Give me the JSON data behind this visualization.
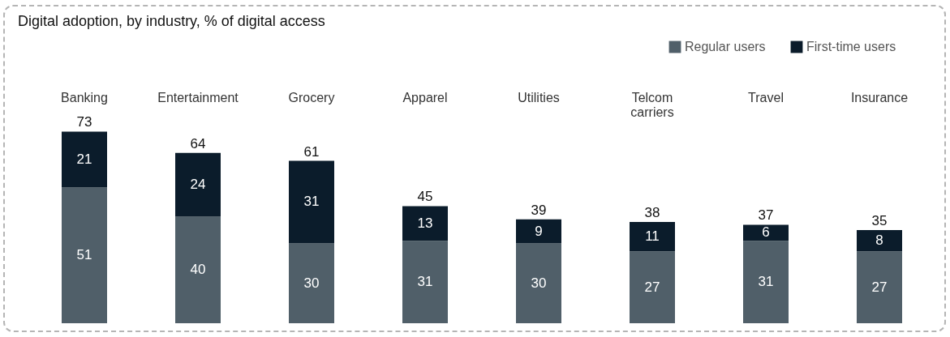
{
  "chart_data": {
    "type": "bar",
    "title": "Digital adoption, by industry, % of digital access",
    "stacked": true,
    "categories": [
      "Banking",
      "Entertainment",
      "Grocery",
      "Apparel",
      "Utilities",
      "Telcom carriers",
      "Travel",
      "Insurance"
    ],
    "series": [
      {
        "name": "Regular users",
        "color": "#505f69",
        "values": [
          51,
          40,
          30,
          31,
          30,
          27,
          31,
          27
        ]
      },
      {
        "name": "First-time users",
        "color": "#0b1c2b",
        "values": [
          21,
          24,
          31,
          13,
          9,
          11,
          6,
          8
        ]
      }
    ],
    "totals": [
      "73",
      "64",
      "61",
      "45",
      "39",
      "38",
      "37",
      "35"
    ],
    "data_labels": true,
    "legend": "top right",
    "grid": false
  }
}
